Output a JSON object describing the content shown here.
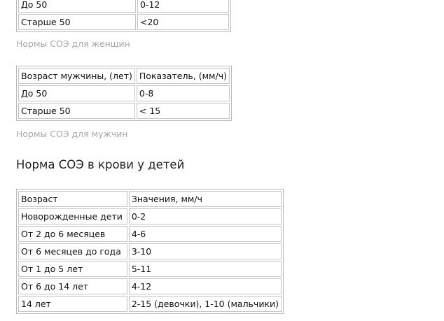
{
  "women_table": {
    "rows": [
      [
        "До 50",
        "0-12"
      ],
      [
        "Старше 50",
        "<20"
      ]
    ]
  },
  "women_caption": "Нормы СОЭ для женщин",
  "men_table": {
    "header": [
      "Возраст мужчины, (лет)",
      "Показатель, (мм/ч)"
    ],
    "rows": [
      [
        "До 50",
        "0-8"
      ],
      [
        "Старше 50",
        "< 15"
      ]
    ]
  },
  "men_caption": "Нормы СОЭ для мужчин",
  "children_heading": "Норма СОЭ в крови у детей",
  "children_table": {
    "header": [
      "Возраст",
      "Значения, мм/ч"
    ],
    "rows": [
      [
        "Новорожденные дети",
        "0-2"
      ],
      [
        "От 2 до 6 месяцев",
        "4-6"
      ],
      [
        "От 6 месяцев до года",
        "3-10"
      ],
      [
        "От 1 до 5 лет",
        "5-11"
      ],
      [
        "От 6 до 14 лет",
        "4-12"
      ],
      [
        "14 лет",
        "2-15 (девочки), 1-10 (мальчики)"
      ]
    ]
  }
}
